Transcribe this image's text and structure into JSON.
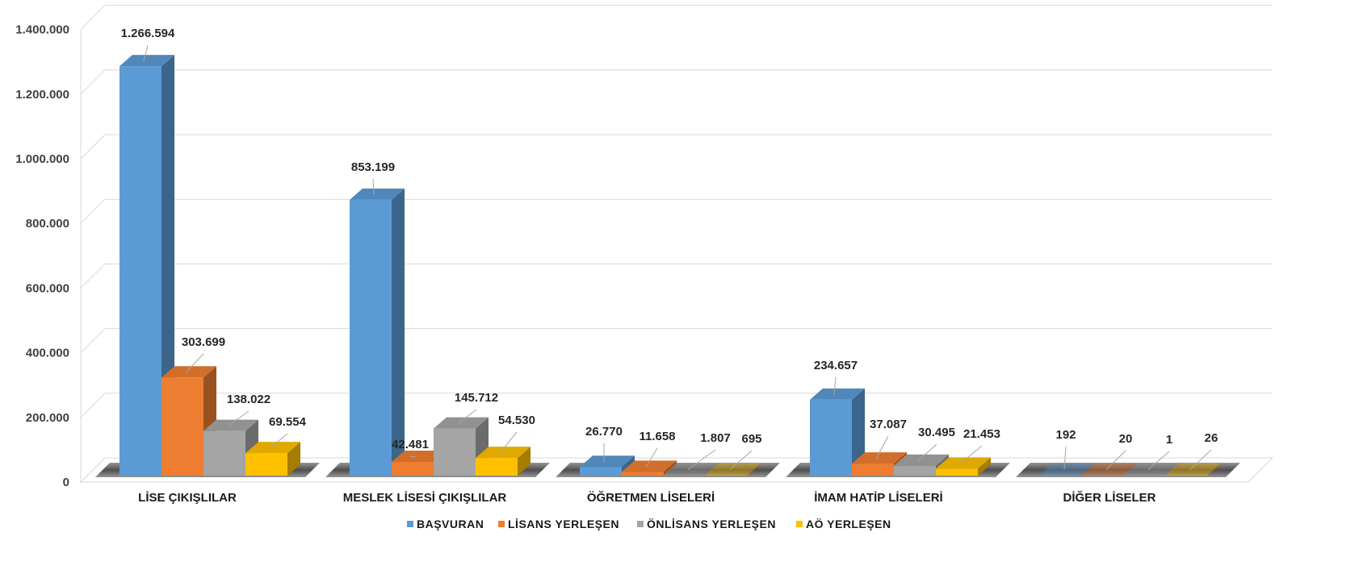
{
  "chart_data": {
    "type": "bar",
    "categories": [
      "LİSE ÇIKIŞLILAR",
      "MESLEK LİSESİ ÇIKIŞLILAR",
      "ÖĞRETMEN LİSELERİ",
      "İMAM HATİP LİSELERİ",
      "DİĞER LİSELER"
    ],
    "series": [
      {
        "name": "BAŞVURAN",
        "values": [
          1266594,
          853199,
          26770,
          234657,
          192
        ],
        "labels": [
          "1.266.594",
          "853.199",
          "26.770",
          "234.657",
          "192"
        ]
      },
      {
        "name": "LİSANS YERLEŞEN",
        "values": [
          303699,
          42481,
          11658,
          37087,
          20
        ],
        "labels": [
          "303.699",
          "42.481",
          "11.658",
          "37.087",
          "20"
        ]
      },
      {
        "name": "ÖNLİSANS YERLEŞEN",
        "values": [
          138022,
          145712,
          1807,
          30495,
          1
        ],
        "labels": [
          "138.022",
          "145.712",
          "1.807",
          "30.495",
          "1"
        ]
      },
      {
        "name": "AÖ YERLEŞEN",
        "values": [
          69554,
          54530,
          695,
          21453,
          26
        ],
        "labels": [
          "69.554",
          "54.530",
          "695",
          "21.453",
          "26"
        ]
      }
    ],
    "yticks": [
      {
        "value": 0,
        "label": "0"
      },
      {
        "value": 200000,
        "label": "200.000"
      },
      {
        "value": 400000,
        "label": "400.000"
      },
      {
        "value": 600000,
        "label": "600.000"
      },
      {
        "value": 800000,
        "label": "800.000"
      },
      {
        "value": 1000000,
        "label": "1.000.000"
      },
      {
        "value": 1200000,
        "label": "1.200.000"
      },
      {
        "value": 1400000,
        "label": "1.400.000"
      }
    ],
    "ylim": [
      0,
      1400000
    ],
    "grid": true,
    "legend_position": "bottom",
    "colors": {
      "BAŞVURAN": "#5b9bd5",
      "LİSANS YERLEŞEN": "#ed7d31",
      "ÖNLİSANS YERLEŞEN": "#a5a5a5",
      "AÖ YERLEŞEN": "#ffc000"
    }
  }
}
